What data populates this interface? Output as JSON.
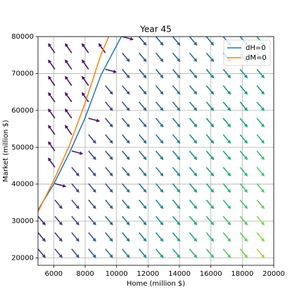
{
  "chart_data": {
    "type": "quiver",
    "title": "Year 45",
    "xlabel": "Home (million $)",
    "ylabel": "Market (million $)",
    "xlim": [
      5000,
      20000
    ],
    "ylim": [
      18000,
      80000
    ],
    "xticks": [
      6000,
      8000,
      10000,
      12000,
      14000,
      16000,
      18000,
      20000
    ],
    "yticks": [
      20000,
      30000,
      40000,
      50000,
      60000,
      70000,
      80000
    ],
    "grid": true,
    "legend": "upper right",
    "colormap": "viridis",
    "quiver": {
      "x": [
        5000,
        6071.4,
        7142.9,
        8214.3,
        9285.7,
        10357.1,
        11428.6,
        12500,
        13571.4,
        14642.9,
        15714.3,
        16785.7,
        17857.1,
        18928.6,
        20000
      ],
      "y": [
        18000,
        22428.6,
        26857.1,
        31285.7,
        35714.3,
        40142.9,
        44571.4,
        49000,
        53428.6,
        57857.1,
        62285.7,
        66714.3,
        71142.9,
        75571.4,
        80000
      ],
      "angles": [
        [
          -50,
          -50,
          -50,
          -50,
          -50,
          -50,
          -50,
          -50,
          -50,
          -50,
          -50,
          -50,
          -50,
          -50,
          -50
        ],
        [
          -50,
          -50,
          -50,
          -50,
          -50,
          -50,
          -50,
          -50,
          -50,
          -50,
          -50,
          -50,
          -50,
          -50,
          -50
        ],
        [
          -50,
          -50,
          -50,
          -50,
          -50,
          -50,
          -50,
          -50,
          -50,
          -50,
          -50,
          -50,
          -50,
          -50,
          -50
        ],
        [
          -50,
          -50,
          -50,
          -50,
          -50,
          -50,
          -50,
          -50,
          -50,
          -50,
          -50,
          -50,
          -50,
          -50,
          -50
        ],
        [
          125,
          -50,
          -50,
          -50,
          -50,
          -50,
          -50,
          -50,
          -50,
          -50,
          -50,
          -50,
          -50,
          -50,
          -50
        ],
        [
          125,
          -15,
          -50,
          -50,
          -50,
          -50,
          -50,
          -50,
          -50,
          -50,
          -50,
          -50,
          -50,
          -50,
          -50
        ],
        [
          125,
          125,
          -50,
          -50,
          -50,
          -50,
          -50,
          -50,
          -50,
          -50,
          -50,
          -50,
          -50,
          -50,
          -50
        ],
        [
          125,
          125,
          -15,
          -50,
          -50,
          -50,
          -50,
          -50,
          -50,
          -50,
          -50,
          -50,
          -50,
          -50,
          -50
        ],
        [
          125,
          125,
          125,
          -50,
          -50,
          -50,
          -50,
          -50,
          -50,
          -50,
          -50,
          -50,
          -50,
          -50,
          -50
        ],
        [
          125,
          125,
          125,
          -15,
          -50,
          -50,
          -50,
          -50,
          -50,
          -50,
          -50,
          -50,
          -50,
          -50,
          -50
        ],
        [
          125,
          125,
          125,
          125,
          -50,
          -50,
          -50,
          -50,
          -50,
          -50,
          -50,
          -50,
          -50,
          -50,
          -50
        ],
        [
          125,
          125,
          125,
          125,
          -50,
          -50,
          -50,
          -50,
          -50,
          -50,
          -50,
          -50,
          -50,
          -50,
          -50
        ],
        [
          125,
          125,
          125,
          125,
          -15,
          -50,
          -50,
          -50,
          -50,
          -50,
          -50,
          -50,
          -50,
          -50,
          -50
        ],
        [
          125,
          125,
          125,
          125,
          125,
          -50,
          -50,
          -50,
          -50,
          -50,
          -50,
          -50,
          -50,
          -50,
          -50
        ],
        [
          125,
          125,
          125,
          125,
          125,
          -15,
          -50,
          -50,
          -50,
          -50,
          -50,
          -50,
          -50,
          -50,
          -50
        ]
      ],
      "magnitudes": [
        [
          0.15,
          0.21,
          0.26,
          0.32,
          0.38,
          0.44,
          0.49,
          0.55,
          0.61,
          0.66,
          0.72,
          0.78,
          0.83,
          0.89,
          0.95
        ],
        [
          0.14,
          0.2,
          0.25,
          0.31,
          0.36,
          0.42,
          0.47,
          0.53,
          0.58,
          0.64,
          0.69,
          0.75,
          0.8,
          0.86,
          0.91
        ],
        [
          0.14,
          0.19,
          0.24,
          0.3,
          0.35,
          0.4,
          0.45,
          0.51,
          0.56,
          0.61,
          0.67,
          0.72,
          0.77,
          0.83,
          0.88
        ],
        [
          0.13,
          0.18,
          0.23,
          0.29,
          0.34,
          0.39,
          0.44,
          0.49,
          0.55,
          0.6,
          0.65,
          0.7,
          0.75,
          0.81,
          0.86
        ],
        [
          0.05,
          0.17,
          0.22,
          0.27,
          0.32,
          0.37,
          0.42,
          0.47,
          0.52,
          0.57,
          0.62,
          0.67,
          0.72,
          0.77,
          0.82
        ],
        [
          0.05,
          0.08,
          0.21,
          0.26,
          0.31,
          0.36,
          0.4,
          0.45,
          0.5,
          0.55,
          0.6,
          0.64,
          0.69,
          0.74,
          0.79
        ],
        [
          0.05,
          0.05,
          0.2,
          0.25,
          0.29,
          0.34,
          0.38,
          0.43,
          0.48,
          0.52,
          0.57,
          0.61,
          0.66,
          0.71,
          0.75
        ],
        [
          0.05,
          0.05,
          0.08,
          0.24,
          0.28,
          0.33,
          0.37,
          0.42,
          0.46,
          0.51,
          0.55,
          0.6,
          0.64,
          0.69,
          0.73
        ],
        [
          0.05,
          0.05,
          0.05,
          0.22,
          0.27,
          0.31,
          0.35,
          0.39,
          0.44,
          0.48,
          0.52,
          0.57,
          0.61,
          0.65,
          0.7
        ],
        [
          0.05,
          0.05,
          0.05,
          0.08,
          0.25,
          0.29,
          0.33,
          0.37,
          0.42,
          0.46,
          0.5,
          0.54,
          0.58,
          0.62,
          0.66
        ],
        [
          0.05,
          0.05,
          0.05,
          0.05,
          0.24,
          0.28,
          0.31,
          0.35,
          0.39,
          0.43,
          0.47,
          0.51,
          0.55,
          0.59,
          0.63
        ],
        [
          0.05,
          0.05,
          0.05,
          0.05,
          0.22,
          0.26,
          0.3,
          0.33,
          0.37,
          0.41,
          0.44,
          0.48,
          0.52,
          0.55,
          0.59
        ],
        [
          0.05,
          0.05,
          0.05,
          0.05,
          0.08,
          0.25,
          0.28,
          0.32,
          0.35,
          0.39,
          0.43,
          0.46,
          0.5,
          0.53,
          0.57
        ],
        [
          0.05,
          0.05,
          0.05,
          0.05,
          0.05,
          0.23,
          0.27,
          0.3,
          0.33,
          0.37,
          0.4,
          0.43,
          0.47,
          0.5,
          0.54
        ],
        [
          0.05,
          0.05,
          0.05,
          0.05,
          0.05,
          0.08,
          0.24,
          0.28,
          0.31,
          0.34,
          0.37,
          0.4,
          0.44,
          0.47,
          0.5
        ]
      ]
    },
    "series": [
      {
        "name": "dH=0",
        "color": "#1f77b4",
        "x": [
          4800,
          5000,
          6000,
          7000,
          8000,
          9000,
          10300
        ],
        "y": [
          31000,
          33000,
          40000,
          48500,
          58000,
          69500,
          80000
        ]
      },
      {
        "name": "dM=0",
        "color": "#ff7f0e",
        "x": [
          4800,
          5000,
          6000,
          7000,
          8000,
          9000,
          9500
        ],
        "y": [
          30500,
          32500,
          41000,
          50500,
          62000,
          75000,
          80000
        ]
      }
    ]
  }
}
